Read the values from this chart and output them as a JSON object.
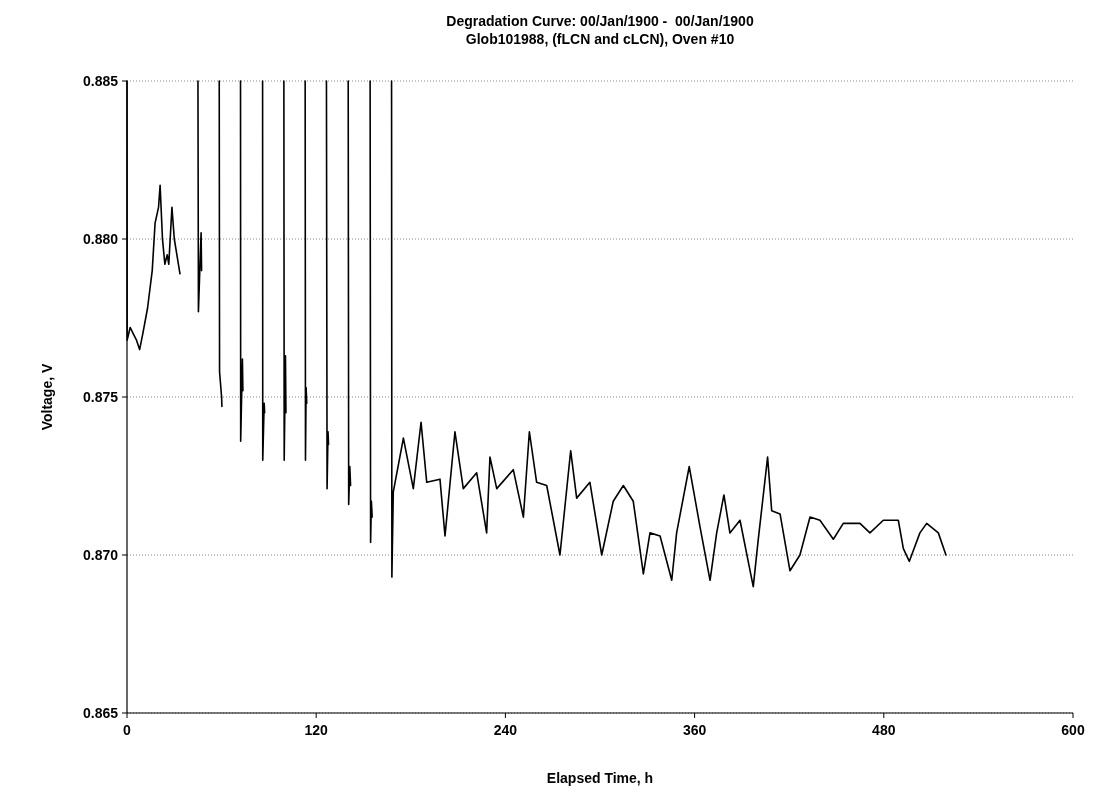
{
  "chart_data": {
    "type": "line",
    "title": "Degradation Curve: 00/Jan/1900 -  00/Jan/1900",
    "subtitle": "Glob101988, (fLCN and cLCN), Oven #10",
    "xlabel": "Elapsed Time, h",
    "ylabel": "Voltage, V",
    "xlim": [
      0,
      600
    ],
    "xticks": [
      0,
      120,
      240,
      360,
      480,
      600
    ],
    "ylim": [
      0.865,
      0.885
    ],
    "yticks": [
      0.865,
      {
        "value": 0.87,
        "label": "0.870"
      },
      0.875,
      {
        "value": 0.88,
        "label": "0.880"
      },
      0.885
    ],
    "grid": "y",
    "marker": "none",
    "line_style": "solid",
    "series": [
      {
        "color": "#000000",
        "x": [
          0,
          0.1,
          2,
          4,
          6,
          8,
          10,
          13,
          16,
          17.8,
          20,
          21,
          22.5,
          24,
          25.5,
          26.5,
          28.5,
          30,
          33.6,
          40,
          45,
          45.3,
          46.5,
          47,
          47.3,
          52,
          58.5,
          58.7,
          60,
          60.2,
          66,
          72,
          72.1,
          73.2,
          73.5,
          80,
          86,
          86.1,
          87,
          87.3,
          93,
          99.5,
          99.7,
          100.5,
          100.8,
          107,
          113,
          113.2,
          113.6,
          114,
          120,
          126.5,
          126.9,
          127.5,
          127.8,
          134,
          140.3,
          140.6,
          141.3,
          141.8,
          148,
          154.2,
          154.5,
          155,
          155.5,
          161,
          167.8,
          168,
          168.9,
          175.3,
          181.6,
          186.5,
          190.1,
          198.5,
          201.7,
          208,
          213.3,
          221.8,
          228.1,
          230.2,
          234.5,
          245,
          251.4,
          255.2,
          259.8,
          266.2,
          274.6,
          281.4,
          285.2,
          293.6,
          301.1,
          308.4,
          314.8,
          321.1,
          327.5,
          331.7,
          338.1,
          345.5,
          348.6,
          356.6,
          363.4,
          369.8,
          374,
          378.6,
          382.4,
          388.8,
          397.2,
          400.4,
          406.3,
          408.9,
          414.2,
          420.5,
          426.8,
          433.2,
          439.5,
          448,
          454.3,
          464.9,
          471.2,
          479.7,
          489.2,
          492.4,
          496.2,
          502.9,
          507.2,
          514.6,
          519.4
        ],
        "values": [
          0.885,
          0.8768,
          0.8772,
          0.877,
          0.8768,
          0.8765,
          0.877,
          0.8778,
          0.879,
          0.8805,
          0.881,
          0.8817,
          0.88,
          0.8792,
          0.8795,
          0.8792,
          0.881,
          0.88,
          0.8789,
          null,
          0.885,
          0.8777,
          0.8795,
          0.8802,
          0.879,
          null,
          0.885,
          0.8758,
          0.875,
          0.8747,
          null,
          0.885,
          0.8736,
          0.8762,
          0.8752,
          null,
          0.885,
          0.873,
          0.8748,
          0.8745,
          null,
          0.885,
          0.873,
          0.8763,
          0.8745,
          null,
          0.885,
          0.873,
          0.8753,
          0.8748,
          null,
          0.885,
          0.8721,
          0.8739,
          0.8735,
          null,
          0.885,
          0.8716,
          0.8728,
          0.8722,
          null,
          0.885,
          0.8704,
          0.8717,
          0.8712,
          null,
          0.885,
          0.8693,
          0.872,
          0.8737,
          0.8721,
          0.8742,
          0.8723,
          0.8724,
          0.8706,
          0.8739,
          0.8721,
          0.8726,
          0.8707,
          0.8731,
          0.8721,
          0.8727,
          0.8712,
          0.8739,
          0.8723,
          0.8722,
          0.87,
          0.8733,
          0.8718,
          0.8723,
          0.87,
          0.8717,
          0.8722,
          0.8717,
          0.8694,
          0.8707,
          0.8706,
          0.8692,
          0.8707,
          0.8728,
          0.8709,
          0.8692,
          0.8707,
          0.8719,
          0.8707,
          0.8711,
          0.869,
          0.8705,
          0.8731,
          0.8714,
          0.8713,
          0.8695,
          0.87,
          0.8712,
          0.8711,
          0.8705,
          0.871,
          0.871,
          0.8707,
          0.8711,
          0.8711,
          0.8702,
          0.8698,
          0.8707,
          0.871,
          0.8707,
          0.87
        ]
      }
    ]
  }
}
